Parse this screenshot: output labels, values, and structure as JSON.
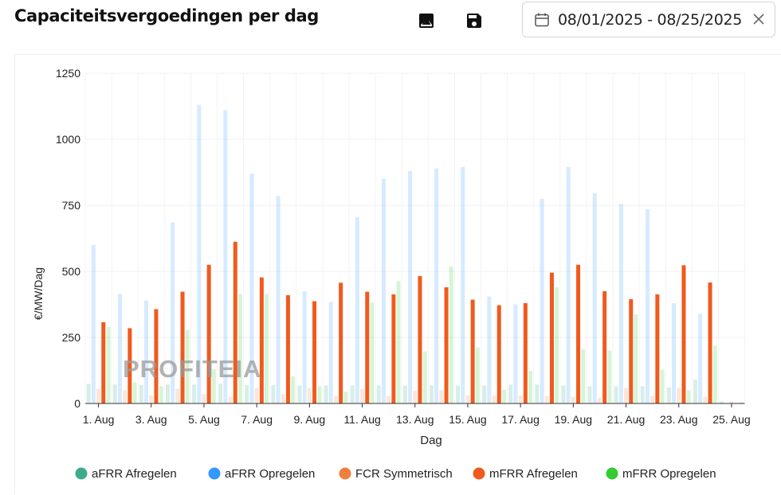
{
  "header": {
    "title": "Capaciteitsvergoedingen per dag",
    "image_icon": "image-icon",
    "save_icon": "save-icon",
    "date_range": "08/01/2025 - 08/25/2025",
    "calendar_icon": "calendar-icon",
    "clear_icon": "close-icon"
  },
  "watermark": "PROFITEIA",
  "chart_data": {
    "type": "bar",
    "title": "Capaciteitsvergoedingen per dag",
    "xlabel": "Dag",
    "ylabel": "€/MW/Dag",
    "ylim": [
      0,
      1250
    ],
    "yticks": [
      0,
      250,
      500,
      750,
      1000,
      1250
    ],
    "grid": true,
    "legend_position": "bottom",
    "categories": [
      "1. Aug",
      "2. Aug",
      "3. Aug",
      "4. Aug",
      "5. Aug",
      "6. Aug",
      "7. Aug",
      "8. Aug",
      "9. Aug",
      "10. Aug",
      "11. Aug",
      "12. Aug",
      "13. Aug",
      "14. Aug",
      "15. Aug",
      "16. Aug",
      "17. Aug",
      "18. Aug",
      "19. Aug",
      "20. Aug",
      "21. Aug",
      "22. Aug",
      "23. Aug",
      "24. Aug",
      "25. Aug"
    ],
    "xtick_labels": [
      "1. Aug",
      "3. Aug",
      "5. Aug",
      "7. Aug",
      "9. Aug",
      "11. Aug",
      "13. Aug",
      "15. Aug",
      "17. Aug",
      "19. Aug",
      "21. Aug",
      "23. Aug",
      "25. Aug"
    ],
    "series": [
      {
        "name": "aFRR Afregelen",
        "color": "#3dab8a",
        "faded": true,
        "values": [
          75,
          72,
          70,
          72,
          72,
          75,
          70,
          70,
          68,
          68,
          68,
          68,
          68,
          68,
          68,
          68,
          72,
          72,
          68,
          65,
          65,
          65,
          60,
          90,
          8
        ]
      },
      {
        "name": "aFRR Opregelen",
        "color": "#3399ff",
        "faded": true,
        "values": [
          600,
          415,
          390,
          685,
          1130,
          1110,
          870,
          785,
          425,
          385,
          705,
          850,
          880,
          890,
          895,
          405,
          375,
          775,
          895,
          795,
          755,
          735,
          380,
          340,
          0
        ]
      },
      {
        "name": "FCR Symmetrisch",
        "color": "#f08040",
        "faded": true,
        "values": [
          55,
          50,
          30,
          55,
          35,
          25,
          58,
          35,
          58,
          28,
          55,
          28,
          48,
          50,
          32,
          30,
          30,
          28,
          25,
          22,
          58,
          28,
          58,
          25,
          8
        ]
      },
      {
        "name": "mFRR Afregelen",
        "color": "#f05a1e",
        "faded": false,
        "values": [
          308,
          285,
          357,
          423,
          525,
          612,
          477,
          410,
          387,
          457,
          423,
          413,
          482,
          440,
          393,
          372,
          380,
          495,
          525,
          425,
          395,
          413,
          523,
          458,
          0
        ]
      },
      {
        "name": "mFRR Opregelen",
        "color": "#33cc33",
        "faded": true,
        "values": [
          290,
          80,
          65,
          278,
          130,
          415,
          415,
          103,
          65,
          45,
          383,
          463,
          197,
          518,
          212,
          52,
          123,
          440,
          205,
          200,
          337,
          128,
          50,
          220,
          5
        ]
      }
    ]
  }
}
